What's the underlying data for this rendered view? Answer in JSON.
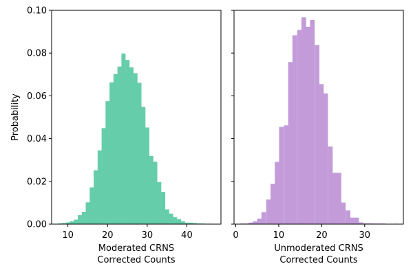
{
  "chart_data": [
    {
      "type": "bar",
      "color": "#66cdaa",
      "xlabel": [
        "Moderated CRNS",
        "Corrected Counts"
      ],
      "ylabel": "Probability",
      "xlim": [
        5.9,
        48.6
      ],
      "ylim": [
        0,
        0.1
      ],
      "xticks": [
        "10",
        "20",
        "30",
        "40"
      ],
      "yticks": [
        "0.00",
        "0.02",
        "0.04",
        "0.06",
        "0.08",
        "0.10"
      ],
      "bin_width": 1,
      "bins": [
        {
          "x": 8,
          "y": 0.0003
        },
        {
          "x": 9,
          "y": 0.0005
        },
        {
          "x": 10,
          "y": 0.0008
        },
        {
          "x": 11,
          "y": 0.0013
        },
        {
          "x": 12,
          "y": 0.0021
        },
        {
          "x": 13,
          "y": 0.0042
        },
        {
          "x": 14,
          "y": 0.0058
        },
        {
          "x": 15,
          "y": 0.0102
        },
        {
          "x": 16,
          "y": 0.0172
        },
        {
          "x": 17,
          "y": 0.0252
        },
        {
          "x": 18,
          "y": 0.0345
        },
        {
          "x": 19,
          "y": 0.0449
        },
        {
          "x": 20,
          "y": 0.0575
        },
        {
          "x": 21,
          "y": 0.0663
        },
        {
          "x": 22,
          "y": 0.0702
        },
        {
          "x": 23,
          "y": 0.0737
        },
        {
          "x": 24,
          "y": 0.0798
        },
        {
          "x": 25,
          "y": 0.0768
        },
        {
          "x": 26,
          "y": 0.0733
        },
        {
          "x": 27,
          "y": 0.0706
        },
        {
          "x": 28,
          "y": 0.0661
        },
        {
          "x": 29,
          "y": 0.0548
        },
        {
          "x": 30,
          "y": 0.0452
        },
        {
          "x": 31,
          "y": 0.0319
        },
        {
          "x": 32,
          "y": 0.0292
        },
        {
          "x": 33,
          "y": 0.0197
        },
        {
          "x": 34,
          "y": 0.0151
        },
        {
          "x": 35,
          "y": 0.0069
        },
        {
          "x": 36,
          "y": 0.0049
        },
        {
          "x": 37,
          "y": 0.0033
        },
        {
          "x": 38,
          "y": 0.0023
        },
        {
          "x": 39,
          "y": 0.0013
        },
        {
          "x": 40,
          "y": 0.0007
        },
        {
          "x": 41,
          "y": 0.0007
        },
        {
          "x": 42,
          "y": 0.0005
        },
        {
          "x": 43,
          "y": 0.0003
        },
        {
          "x": 44,
          "y": 0.0003
        },
        {
          "x": 45,
          "y": 0.0002
        },
        {
          "x": 46,
          "y": 0.0002
        }
      ]
    },
    {
      "type": "bar",
      "color": "#c39bd9",
      "xlabel": [
        "Unmoderated CRNS",
        "Corrected Counts"
      ],
      "xlim": [
        -0.4,
        39.0
      ],
      "ylim": [
        0,
        0.1
      ],
      "xticks": [
        "0",
        "10",
        "20",
        "30"
      ],
      "bin_width": 1.03,
      "bins": [
        {
          "x": 1.5,
          "y": 0.0003
        },
        {
          "x": 2.5,
          "y": 0.0003
        },
        {
          "x": 3.5,
          "y": 0.0007
        },
        {
          "x": 4.5,
          "y": 0.0013
        },
        {
          "x": 5.5,
          "y": 0.0026
        },
        {
          "x": 6.5,
          "y": 0.0056
        },
        {
          "x": 7.6,
          "y": 0.0115
        },
        {
          "x": 8.6,
          "y": 0.0188
        },
        {
          "x": 9.6,
          "y": 0.0291
        },
        {
          "x": 10.6,
          "y": 0.0455
        },
        {
          "x": 11.7,
          "y": 0.0462
        },
        {
          "x": 12.7,
          "y": 0.0758
        },
        {
          "x": 13.7,
          "y": 0.0883
        },
        {
          "x": 14.8,
          "y": 0.0908
        },
        {
          "x": 15.8,
          "y": 0.0967
        },
        {
          "x": 16.8,
          "y": 0.0923
        },
        {
          "x": 17.8,
          "y": 0.0955
        },
        {
          "x": 18.9,
          "y": 0.0838
        },
        {
          "x": 19.9,
          "y": 0.0655
        },
        {
          "x": 20.9,
          "y": 0.0611
        },
        {
          "x": 22.0,
          "y": 0.0363
        },
        {
          "x": 23.0,
          "y": 0.024
        },
        {
          "x": 24.0,
          "y": 0.024
        },
        {
          "x": 25.0,
          "y": 0.0101
        },
        {
          "x": 26.1,
          "y": 0.0064
        },
        {
          "x": 27.1,
          "y": 0.003
        },
        {
          "x": 28.1,
          "y": 0.003
        },
        {
          "x": 29.1,
          "y": 0.0008
        },
        {
          "x": 30.2,
          "y": 0.0004
        },
        {
          "x": 31.2,
          "y": 0.0004
        },
        {
          "x": 32.2,
          "y": 0.0003
        },
        {
          "x": 33.3,
          "y": 0.0003
        },
        {
          "x": 34.3,
          "y": 0.0003
        },
        {
          "x": 37.4,
          "y": 0.0002
        }
      ]
    }
  ]
}
